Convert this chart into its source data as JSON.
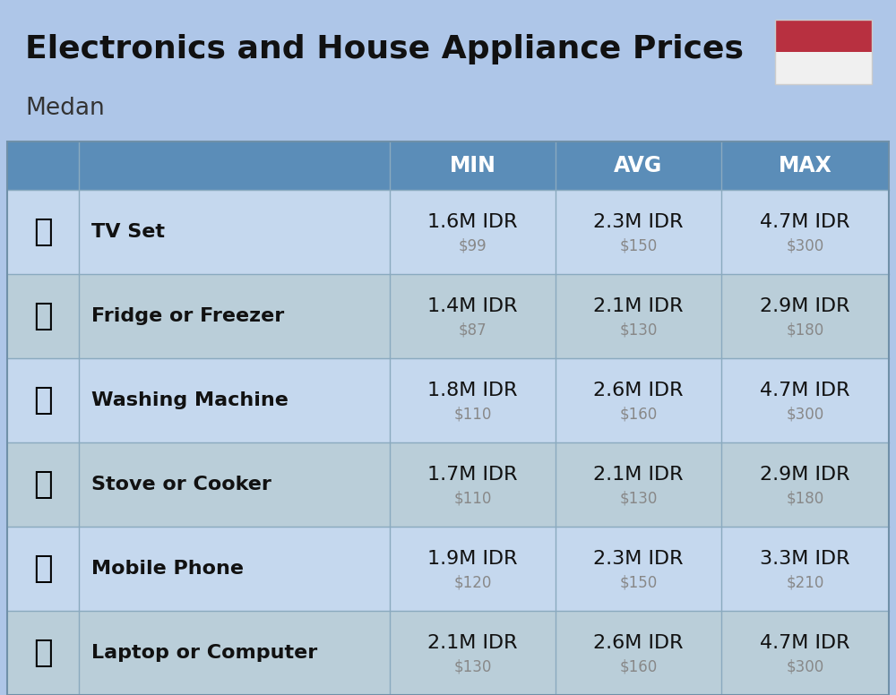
{
  "title": "Electronics and House Appliance Prices",
  "subtitle": "Medan",
  "background_color": "#aec6e8",
  "header_bg_color": "#5b8db8",
  "header_text_color": "#ffffff",
  "row_bg_color_even": "#c5d8ee",
  "row_bg_color_odd": "#baced9",
  "item_name_color": "#111111",
  "price_idr_color": "#111111",
  "price_usd_color": "#888888",
  "divider_color": "#8aaabf",
  "border_color": "#7090a8",
  "columns": [
    "MIN",
    "AVG",
    "MAX"
  ],
  "rows": [
    {
      "name": "TV Set",
      "min_idr": "1.6M IDR",
      "min_usd": "$99",
      "avg_idr": "2.3M IDR",
      "avg_usd": "$150",
      "max_idr": "4.7M IDR",
      "max_usd": "$300"
    },
    {
      "name": "Fridge or Freezer",
      "min_idr": "1.4M IDR",
      "min_usd": "$87",
      "avg_idr": "2.1M IDR",
      "avg_usd": "$130",
      "max_idr": "2.9M IDR",
      "max_usd": "$180"
    },
    {
      "name": "Washing Machine",
      "min_idr": "1.8M IDR",
      "min_usd": "$110",
      "avg_idr": "2.6M IDR",
      "avg_usd": "$160",
      "max_idr": "4.7M IDR",
      "max_usd": "$300"
    },
    {
      "name": "Stove or Cooker",
      "min_idr": "1.7M IDR",
      "min_usd": "$110",
      "avg_idr": "2.1M IDR",
      "avg_usd": "$130",
      "max_idr": "2.9M IDR",
      "max_usd": "$180"
    },
    {
      "name": "Mobile Phone",
      "min_idr": "1.9M IDR",
      "min_usd": "$120",
      "avg_idr": "2.3M IDR",
      "avg_usd": "$150",
      "max_idr": "3.3M IDR",
      "max_usd": "$210"
    },
    {
      "name": "Laptop or Computer",
      "min_idr": "2.1M IDR",
      "min_usd": "$130",
      "avg_idr": "2.6M IDR",
      "avg_usd": "$160",
      "max_idr": "4.7M IDR",
      "max_usd": "$300"
    }
  ],
  "flag_red": "#b83040",
  "flag_white": "#f0f0f0",
  "title_fontsize": 26,
  "subtitle_fontsize": 19,
  "header_fontsize": 17,
  "item_name_fontsize": 16,
  "price_idr_fontsize": 16,
  "price_usd_fontsize": 12,
  "icon_fontsize": 26,
  "fig_width": 10.0,
  "fig_height": 7.76,
  "dpi": 100
}
